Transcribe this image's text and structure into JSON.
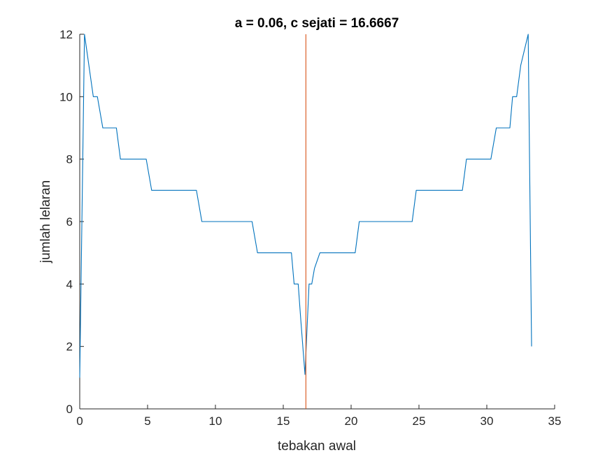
{
  "chart_data": {
    "type": "line",
    "title": "a = 0.06, c sejati = 16.6667",
    "xlabel": "tebakan awal",
    "ylabel": "jumlah lelaran",
    "xlim": [
      0,
      35
    ],
    "ylim": [
      0,
      12
    ],
    "xticks": [
      0,
      5,
      10,
      15,
      20,
      25,
      30,
      35
    ],
    "yticks": [
      0,
      2,
      4,
      6,
      8,
      10,
      12
    ],
    "xtick_labels": [
      "0",
      "5",
      "10",
      "15",
      "20",
      "25",
      "30",
      "35"
    ],
    "ytick_labels": [
      "0",
      "2",
      "4",
      "6",
      "8",
      "10",
      "12"
    ],
    "grid": false,
    "series": [
      {
        "color": "#0072BD",
        "x": [
          0.0,
          0.35,
          1.0,
          1.3,
          1.7,
          2.7,
          3.0,
          4.9,
          5.3,
          8.6,
          9.0,
          12.7,
          13.1,
          15.6,
          15.8,
          16.1,
          16.3,
          16.6,
          16.9,
          17.1,
          17.3,
          17.7,
          20.3,
          20.6,
          24.5,
          24.8,
          28.2,
          28.5,
          30.3,
          30.7,
          31.7,
          31.9,
          32.2,
          32.5,
          33.05,
          33.3
        ],
        "y": [
          1,
          12,
          10,
          10,
          9,
          9,
          8,
          8,
          7,
          7,
          6,
          6,
          5,
          5,
          4,
          4,
          2.8,
          1.1,
          4,
          4,
          4.5,
          5,
          5,
          6,
          6,
          7,
          7,
          8,
          8,
          9,
          9,
          10,
          10,
          11,
          12,
          2
        ]
      },
      {
        "color": "#D95319",
        "x": [
          16.6667,
          16.6667
        ],
        "y": [
          0,
          12
        ]
      }
    ]
  }
}
